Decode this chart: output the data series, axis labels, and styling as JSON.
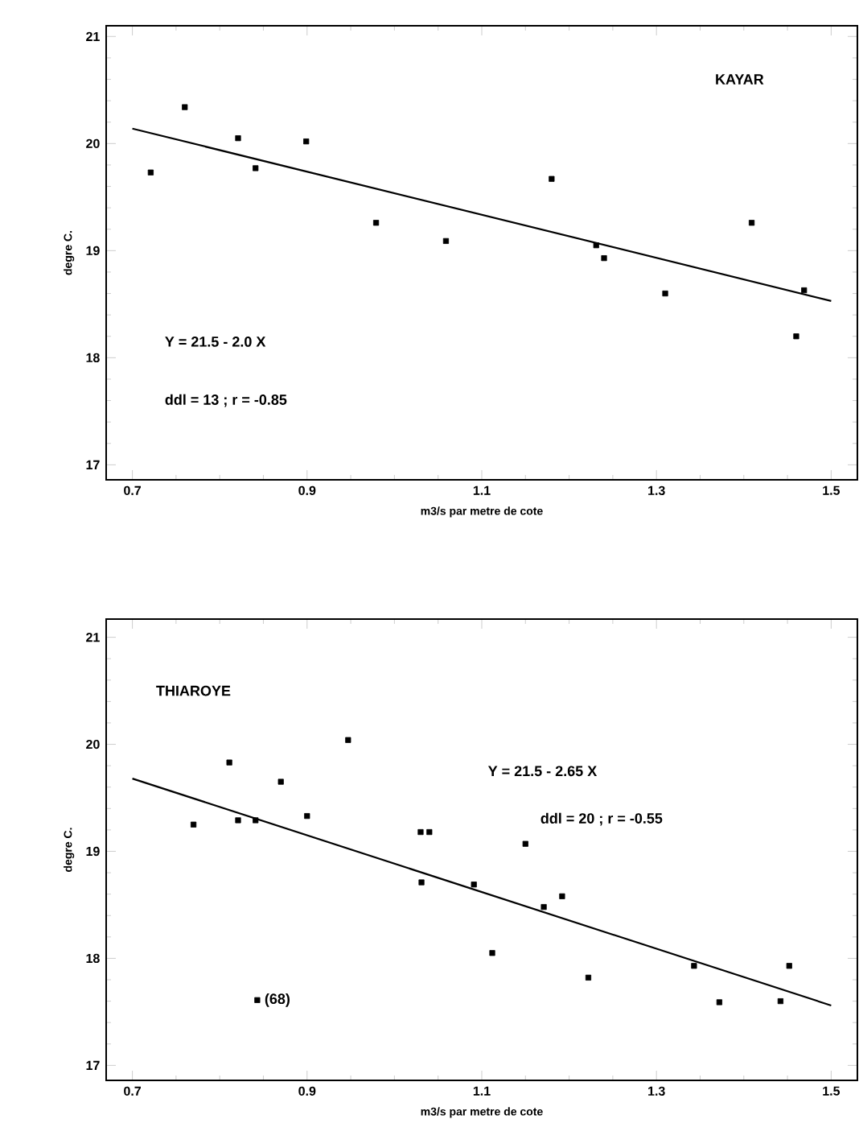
{
  "chart_data": [
    {
      "type": "scatter",
      "title": "KAYAR",
      "xlabel": "m3/s par metre de cote",
      "ylabel": "degre C.",
      "xlim": [
        0.67,
        1.53
      ],
      "ylim": [
        16.86,
        21.1
      ],
      "xticks": [
        0.7,
        0.9,
        1.1,
        1.3,
        1.5
      ],
      "yticks": [
        17,
        18,
        19,
        20,
        21
      ],
      "annotations": [
        "Y = 21.5 - 2.0 X",
        "ddl = 13 ; r = -0.85"
      ],
      "series": [
        {
          "type": "scatter",
          "marker": "square",
          "color": "#000000",
          "x": [
            0.721,
            0.76,
            0.821,
            0.841,
            0.899,
            0.979,
            1.059,
            1.18,
            1.231,
            1.24,
            1.31,
            1.409,
            1.46,
            1.469
          ],
          "values": [
            19.73,
            20.34,
            20.05,
            19.77,
            20.02,
            19.26,
            19.09,
            19.67,
            19.05,
            18.93,
            18.6,
            19.26,
            18.2,
            18.63
          ]
        },
        {
          "type": "line",
          "marker": "none",
          "color": "#000000",
          "x": [
            0.7,
            1.5
          ],
          "values": [
            20.14,
            18.53
          ]
        }
      ]
    },
    {
      "type": "scatter",
      "title": "THIAROYE",
      "xlabel": "m3/s par metre de cote",
      "ylabel": "degre C.",
      "xlim": [
        0.67,
        1.53
      ],
      "ylim": [
        16.86,
        21.17
      ],
      "xticks": [
        0.7,
        0.9,
        1.1,
        1.3,
        1.5
      ],
      "yticks": [
        17,
        18,
        19,
        20,
        21
      ],
      "annotations": [
        "Y = 21.5 - 2.65 X",
        "ddl = 20 ; r = -0.55",
        {
          "text": "(68)",
          "x": 0.843,
          "y": 17.61
        }
      ],
      "series": [
        {
          "type": "scatter",
          "marker": "square",
          "color": "#000000",
          "x": [
            0.77,
            0.811,
            0.821,
            0.841,
            0.87,
            0.9,
            0.947,
            1.03,
            1.04,
            1.031,
            1.091,
            1.112,
            1.15,
            1.171,
            1.192,
            1.222,
            1.343,
            1.372,
            1.442,
            1.452,
            0.843
          ],
          "values": [
            19.25,
            19.83,
            19.29,
            19.29,
            19.65,
            19.33,
            20.04,
            19.18,
            19.18,
            18.71,
            18.69,
            18.05,
            19.07,
            18.48,
            18.58,
            17.82,
            17.93,
            17.59,
            17.6,
            17.93,
            17.61
          ]
        },
        {
          "type": "line",
          "marker": "none",
          "color": "#000000",
          "x": [
            0.7,
            1.5
          ],
          "values": [
            19.68,
            17.56
          ]
        }
      ]
    }
  ]
}
